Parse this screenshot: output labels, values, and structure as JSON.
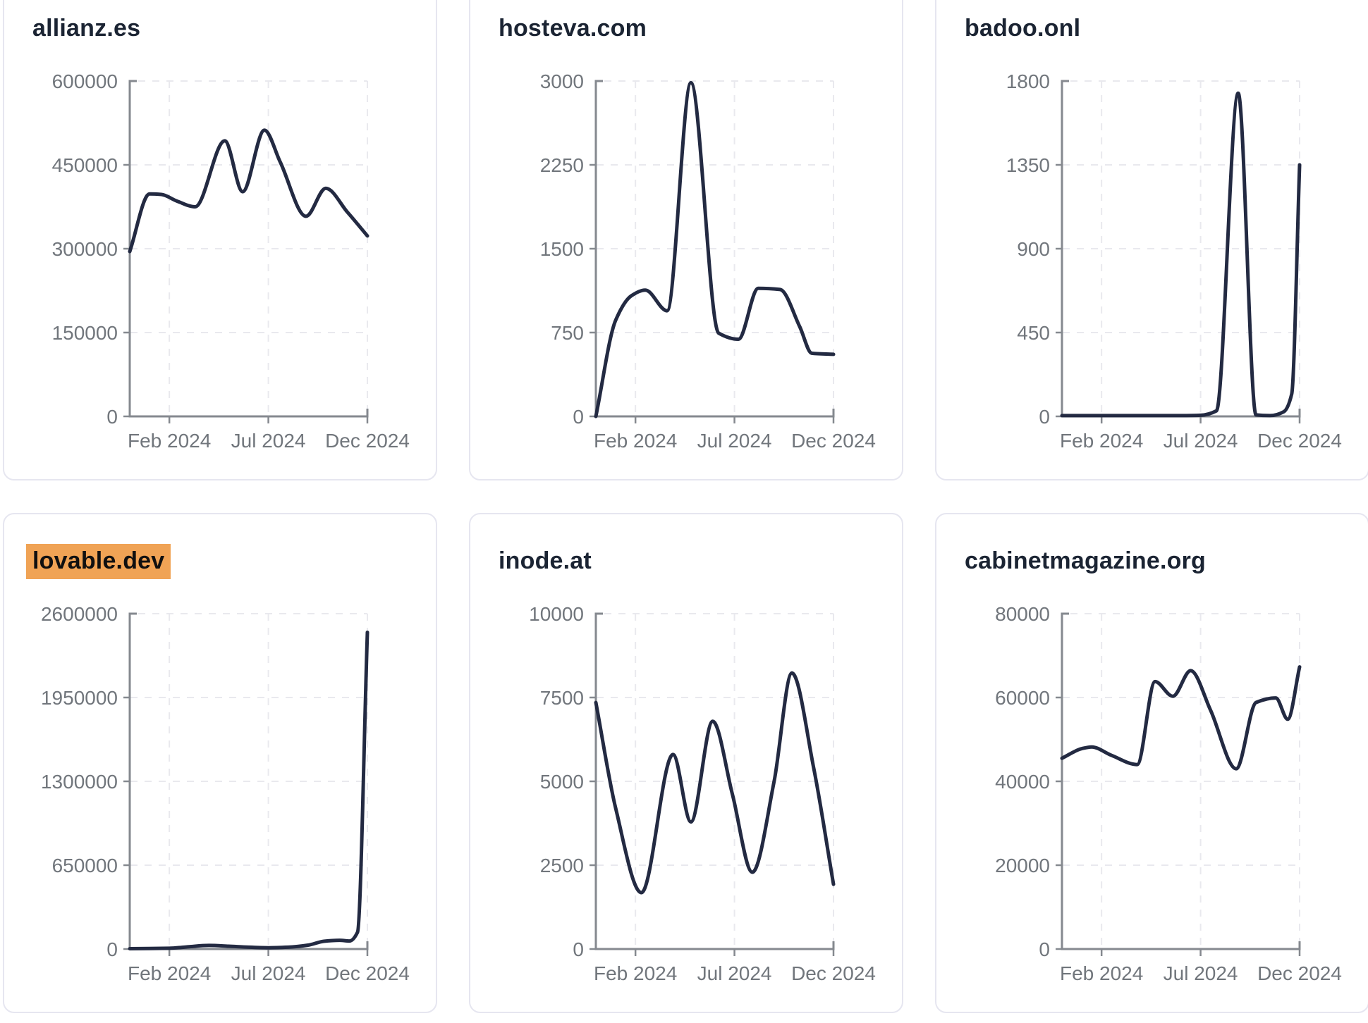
{
  "theme": {
    "page_bg": "#ffffff",
    "card_bg": "#ffffff",
    "card_border": "#e6e6f0",
    "title_color": "#1b2433",
    "tick_text_color": "#71767c",
    "axis_color": "#85898f",
    "grid_color": "#e9e9ee",
    "line_color": "#232a42",
    "highlight_color": "#f0a355",
    "highlight_text_color": "#101010"
  },
  "layout_hints": {
    "columns": 3,
    "rows": 2,
    "grid": "dashed horizontal and vertical gridlines at ticks",
    "legend": "none"
  },
  "chart_data": [
    {
      "type": "line",
      "title": "allianz.es",
      "highlighted": false,
      "x_domain_months": [
        0,
        12
      ],
      "x_tick_labels": [
        "Feb 2024",
        "Jul 2024",
        "Dec 2024"
      ],
      "x_tick_positions": [
        2,
        7,
        12
      ],
      "y_ticks": [
        0,
        150000,
        300000,
        450000,
        600000
      ],
      "y_max": 600000,
      "points": [
        [
          0,
          295000
        ],
        [
          1,
          398000
        ],
        [
          1.6,
          397000
        ],
        [
          2.4,
          385000
        ],
        [
          3.3,
          375000
        ],
        [
          4.8,
          493000
        ],
        [
          5.7,
          402000
        ],
        [
          6.8,
          512000
        ],
        [
          7.6,
          455000
        ],
        [
          8.9,
          358000
        ],
        [
          9.9,
          408000
        ],
        [
          11,
          365000
        ],
        [
          12,
          323000
        ]
      ]
    },
    {
      "type": "line",
      "title": "hosteva.com",
      "highlighted": false,
      "x_domain_months": [
        0,
        12
      ],
      "x_tick_labels": [
        "Feb 2024",
        "Jul 2024",
        "Dec 2024"
      ],
      "x_tick_positions": [
        2,
        7,
        12
      ],
      "y_ticks": [
        0,
        750,
        1500,
        2250,
        3000
      ],
      "y_max": 3000,
      "points": [
        [
          0,
          0
        ],
        [
          1,
          860
        ],
        [
          1.8,
          1080
        ],
        [
          2.5,
          1130
        ],
        [
          3.6,
          945
        ],
        [
          4.8,
          2985
        ],
        [
          6.2,
          745
        ],
        [
          7.2,
          690
        ],
        [
          8.2,
          1145
        ],
        [
          9.3,
          1135
        ],
        [
          10.3,
          800
        ],
        [
          10.9,
          565
        ],
        [
          12,
          555
        ]
      ]
    },
    {
      "type": "line",
      "title": "badoo.onl",
      "highlighted": false,
      "x_domain_months": [
        0,
        12
      ],
      "x_tick_labels": [
        "Feb 2024",
        "Jul 2024",
        "Dec 2024"
      ],
      "x_tick_positions": [
        2,
        7,
        12
      ],
      "y_ticks": [
        0,
        450,
        900,
        1350,
        1800
      ],
      "y_max": 1800,
      "points": [
        [
          0,
          4
        ],
        [
          1,
          4
        ],
        [
          2,
          4
        ],
        [
          3,
          4
        ],
        [
          4,
          4
        ],
        [
          5,
          4
        ],
        [
          6,
          4
        ],
        [
          7,
          6
        ],
        [
          7.8,
          30
        ],
        [
          8.9,
          1735
        ],
        [
          9.8,
          8
        ],
        [
          10.5,
          4
        ],
        [
          11.2,
          25
        ],
        [
          11.6,
          120
        ],
        [
          12,
          1350
        ]
      ]
    },
    {
      "type": "line",
      "title": "lovable.dev",
      "highlighted": true,
      "x_domain_months": [
        0,
        12
      ],
      "x_tick_labels": [
        "Feb 2024",
        "Jul 2024",
        "Dec 2024"
      ],
      "x_tick_positions": [
        2,
        7,
        12
      ],
      "y_ticks": [
        0,
        650000,
        1300000,
        1950000,
        2600000
      ],
      "y_max": 2600000,
      "points": [
        [
          0,
          3000
        ],
        [
          1,
          4000
        ],
        [
          2,
          6000
        ],
        [
          3,
          18000
        ],
        [
          4,
          28000
        ],
        [
          5,
          22000
        ],
        [
          6,
          14000
        ],
        [
          7,
          10000
        ],
        [
          8,
          14000
        ],
        [
          9,
          30000
        ],
        [
          9.8,
          60000
        ],
        [
          10.6,
          68000
        ],
        [
          11.1,
          62000
        ],
        [
          11.5,
          130000
        ],
        [
          12,
          2455000
        ]
      ]
    },
    {
      "type": "line",
      "title": "inode.at",
      "highlighted": false,
      "x_domain_months": [
        0,
        12
      ],
      "x_tick_labels": [
        "Feb 2024",
        "Jul 2024",
        "Dec 2024"
      ],
      "x_tick_positions": [
        2,
        7,
        12
      ],
      "y_ticks": [
        0,
        2500,
        5000,
        7500,
        10000
      ],
      "y_max": 10000,
      "points": [
        [
          0,
          7350
        ],
        [
          1,
          4200
        ],
        [
          2.3,
          1680
        ],
        [
          3.9,
          5800
        ],
        [
          4.8,
          3790
        ],
        [
          5.9,
          6790
        ],
        [
          6.9,
          4600
        ],
        [
          7.9,
          2290
        ],
        [
          9,
          5000
        ],
        [
          9.9,
          8230
        ],
        [
          11,
          5400
        ],
        [
          12,
          1930
        ]
      ]
    },
    {
      "type": "line",
      "title": "cabinetmagazine.org",
      "highlighted": false,
      "x_domain_months": [
        0,
        12
      ],
      "x_tick_labels": [
        "Feb 2024",
        "Jul 2024",
        "Dec 2024"
      ],
      "x_tick_positions": [
        2,
        7,
        12
      ],
      "y_ticks": [
        0,
        20000,
        40000,
        60000,
        80000
      ],
      "y_max": 80000,
      "points": [
        [
          0,
          45500
        ],
        [
          1,
          47800
        ],
        [
          1.5,
          48200
        ],
        [
          2.5,
          46200
        ],
        [
          3.8,
          44000
        ],
        [
          4.7,
          63800
        ],
        [
          5.6,
          60300
        ],
        [
          6.5,
          66400
        ],
        [
          7.5,
          57000
        ],
        [
          8.8,
          43000
        ],
        [
          9.8,
          58800
        ],
        [
          10.8,
          59900
        ],
        [
          11.4,
          54800
        ],
        [
          12,
          67300
        ]
      ]
    }
  ]
}
